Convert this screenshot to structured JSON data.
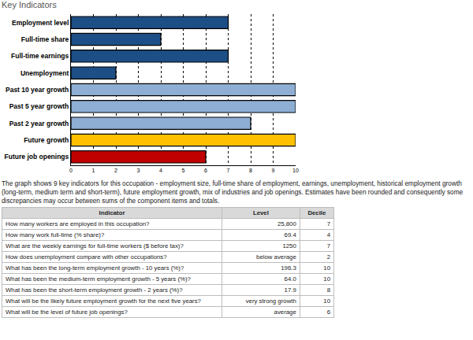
{
  "header": {
    "title": "Key Indicators"
  },
  "chart_data": {
    "type": "bar",
    "orientation": "horizontal",
    "categories": [
      "Employment level",
      "Full-time share",
      "Full-time earnings",
      "Unemployment",
      "Past 10 year growth",
      "Past 5 year growth",
      "Past 2 year growth",
      "Future growth",
      "Future job openings"
    ],
    "values": [
      7,
      4,
      7,
      2,
      10,
      10,
      8,
      10,
      6
    ],
    "colors": [
      "#1d4f86",
      "#1d4f86",
      "#1d4f86",
      "#1d4f86",
      "#8eaed3",
      "#8eaed3",
      "#8eaed3",
      "#ffc000",
      "#c00000"
    ],
    "xlim": [
      0,
      10
    ],
    "xticks": [
      0,
      1,
      2,
      3,
      4,
      5,
      6,
      7,
      8,
      9,
      10
    ],
    "grid": true
  },
  "description": "The graph shows 9 key indicators for this occupation - employment size, full-time share of employment, earnings, unemployment, historical employment growth (long-term, medium term and short-term), future employment growth, mix of industries and job openings. Estimates have been rounded and consequently some discrepancies may occur between sums of the component items and totals.",
  "table": {
    "header": [
      "Indicator",
      "Level",
      "Decile"
    ],
    "rows": [
      [
        "How many workers are employed in this occupation?",
        "25,800",
        7
      ],
      [
        "How many work full-time (% share)?",
        "69.4",
        4
      ],
      [
        "What are the weekly earnings for full-time workers ($ before tax)?",
        "1250",
        7
      ],
      [
        "How does unemployment compare with other occupations?",
        "below average",
        2
      ],
      [
        "What has been the long-term employment growth - 10 years (%)?",
        "196.3",
        10
      ],
      [
        "What has been the medium-term employment growth - 5 years (%)?",
        "64.0",
        10
      ],
      [
        "What has been the short-term employment growth - 2 years (%)?",
        "17.9",
        8
      ],
      [
        "What will be the likely future employment growth for the next five years?",
        "very strong growth",
        10
      ],
      [
        "What will be the level of future job openings?",
        "average",
        6
      ]
    ]
  }
}
